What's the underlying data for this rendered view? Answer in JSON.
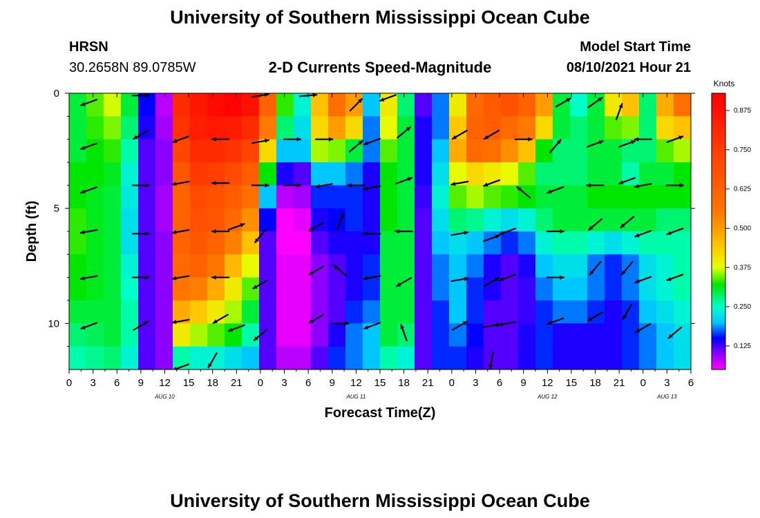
{
  "header": {
    "title": "University of Southern Mississippi Ocean Cube",
    "station": "HRSN",
    "coords": "30.2658N  89.0785W",
    "plot_title": "2-D Currents Speed-Magnitude",
    "model_label": "Model Start Time",
    "model_time": "08/10/2021 Hour 21"
  },
  "footer": {
    "title": "University of Southern Mississippi Ocean Cube"
  },
  "chart_data": {
    "type": "heatmap",
    "title": "2-D Currents Speed-Magnitude",
    "xlabel": "Forecast Time(Z)",
    "ylabel": "Depth (ft)",
    "xlim": [
      0,
      78
    ],
    "ylim": [
      0,
      12
    ],
    "y_inverted": true,
    "x_ticks": [
      {
        "t": 0,
        "label": "0"
      },
      {
        "t": 3,
        "label": "3"
      },
      {
        "t": 6,
        "label": "6"
      },
      {
        "t": 9,
        "label": "9"
      },
      {
        "t": 12,
        "label": "12"
      },
      {
        "t": 15,
        "label": "15"
      },
      {
        "t": 18,
        "label": "18"
      },
      {
        "t": 21,
        "label": "21"
      },
      {
        "t": 24,
        "label": "0"
      },
      {
        "t": 27,
        "label": "3"
      },
      {
        "t": 30,
        "label": "6"
      },
      {
        "t": 33,
        "label": "9"
      },
      {
        "t": 36,
        "label": "12"
      },
      {
        "t": 39,
        "label": "15"
      },
      {
        "t": 42,
        "label": "18"
      },
      {
        "t": 45,
        "label": "21"
      },
      {
        "t": 48,
        "label": "0"
      },
      {
        "t": 51,
        "label": "3"
      },
      {
        "t": 54,
        "label": "6"
      },
      {
        "t": 57,
        "label": "9"
      },
      {
        "t": 60,
        "label": "12"
      },
      {
        "t": 63,
        "label": "15"
      },
      {
        "t": 66,
        "label": "18"
      },
      {
        "t": 69,
        "label": "21"
      },
      {
        "t": 72,
        "label": "0"
      },
      {
        "t": 75,
        "label": "3"
      },
      {
        "t": 78,
        "label": "6"
      }
    ],
    "date_labels": [
      {
        "t": 12,
        "label": "AUG 10"
      },
      {
        "t": 36,
        "label": "AUG 11"
      },
      {
        "t": 60,
        "label": "AUG 12"
      },
      {
        "t": 75,
        "label": "AUG 13"
      }
    ],
    "y_ticks": [
      0,
      5,
      10
    ],
    "colorbar": {
      "label": "Knots",
      "min": 0.05,
      "max": 0.93,
      "ticks": [
        "0.875",
        "0.750",
        "0.625",
        "0.500",
        "0.375",
        "0.250",
        "0.125"
      ],
      "tick_values": [
        0.875,
        0.75,
        0.625,
        0.5,
        0.375,
        0.25,
        0.125
      ]
    },
    "depths_ft": [
      0.5,
      1.5,
      2.5,
      3.5,
      4.5,
      5.5,
      6.5,
      7.5,
      8.5,
      9.5,
      10.5,
      11.5
    ],
    "speed_knots": [
      [
        0.3,
        0.34,
        0.37,
        0.3,
        0.15,
        0.08,
        0.8,
        0.86,
        0.9,
        0.92,
        0.88,
        0.62,
        0.33,
        0.24,
        0.45,
        0.58,
        0.5,
        0.2,
        0.4,
        0.28,
        0.12,
        0.18,
        0.4,
        0.6,
        0.65,
        0.68,
        0.62,
        0.5,
        0.3,
        0.25,
        0.3,
        0.4,
        0.45,
        0.28,
        0.48,
        0.58
      ],
      [
        0.3,
        0.33,
        0.35,
        0.28,
        0.14,
        0.09,
        0.78,
        0.84,
        0.86,
        0.85,
        0.8,
        0.55,
        0.28,
        0.22,
        0.42,
        0.5,
        0.42,
        0.18,
        0.38,
        0.3,
        0.14,
        0.18,
        0.44,
        0.62,
        0.64,
        0.6,
        0.55,
        0.42,
        0.3,
        0.28,
        0.3,
        0.34,
        0.35,
        0.28,
        0.42,
        0.45
      ],
      [
        0.3,
        0.32,
        0.33,
        0.26,
        0.12,
        0.1,
        0.72,
        0.8,
        0.8,
        0.78,
        0.72,
        0.42,
        0.2,
        0.2,
        0.36,
        0.35,
        0.3,
        0.18,
        0.34,
        0.3,
        0.14,
        0.2,
        0.48,
        0.6,
        0.58,
        0.52,
        0.45,
        0.32,
        0.28,
        0.28,
        0.3,
        0.3,
        0.28,
        0.28,
        0.34,
        0.36
      ],
      [
        0.32,
        0.32,
        0.31,
        0.24,
        0.12,
        0.1,
        0.66,
        0.76,
        0.74,
        0.7,
        0.64,
        0.32,
        0.14,
        0.12,
        0.2,
        0.2,
        0.18,
        0.14,
        0.32,
        0.3,
        0.14,
        0.22,
        0.38,
        0.42,
        0.4,
        0.38,
        0.34,
        0.28,
        0.28,
        0.28,
        0.3,
        0.3,
        0.26,
        0.3,
        0.3,
        0.32
      ],
      [
        0.32,
        0.31,
        0.3,
        0.23,
        0.12,
        0.09,
        0.62,
        0.7,
        0.68,
        0.64,
        0.58,
        0.2,
        0.08,
        0.09,
        0.16,
        0.16,
        0.16,
        0.14,
        0.32,
        0.3,
        0.13,
        0.24,
        0.34,
        0.36,
        0.34,
        0.33,
        0.32,
        0.3,
        0.3,
        0.3,
        0.32,
        0.32,
        0.32,
        0.32,
        0.32,
        0.32
      ],
      [
        0.33,
        0.31,
        0.3,
        0.22,
        0.12,
        0.09,
        0.62,
        0.68,
        0.66,
        0.6,
        0.52,
        0.15,
        0.05,
        0.06,
        0.14,
        0.15,
        0.16,
        0.14,
        0.32,
        0.3,
        0.12,
        0.22,
        0.28,
        0.27,
        0.24,
        0.22,
        0.24,
        0.28,
        0.3,
        0.3,
        0.3,
        0.3,
        0.3,
        0.3,
        0.28,
        0.28
      ],
      [
        0.33,
        0.31,
        0.3,
        0.22,
        0.12,
        0.1,
        0.62,
        0.66,
        0.62,
        0.54,
        0.45,
        0.12,
        0.05,
        0.05,
        0.12,
        0.14,
        0.14,
        0.14,
        0.3,
        0.3,
        0.12,
        0.2,
        0.22,
        0.2,
        0.18,
        0.16,
        0.18,
        0.24,
        0.26,
        0.26,
        0.24,
        0.22,
        0.24,
        0.26,
        0.26,
        0.26
      ],
      [
        0.32,
        0.31,
        0.3,
        0.24,
        0.12,
        0.1,
        0.6,
        0.62,
        0.56,
        0.46,
        0.38,
        0.12,
        0.06,
        0.06,
        0.1,
        0.12,
        0.14,
        0.16,
        0.3,
        0.3,
        0.12,
        0.18,
        0.2,
        0.18,
        0.14,
        0.12,
        0.14,
        0.2,
        0.22,
        0.22,
        0.18,
        0.16,
        0.18,
        0.22,
        0.24,
        0.26
      ],
      [
        0.32,
        0.31,
        0.3,
        0.25,
        0.12,
        0.1,
        0.56,
        0.54,
        0.48,
        0.4,
        0.34,
        0.12,
        0.06,
        0.06,
        0.1,
        0.12,
        0.14,
        0.16,
        0.3,
        0.3,
        0.12,
        0.18,
        0.2,
        0.16,
        0.14,
        0.12,
        0.13,
        0.18,
        0.2,
        0.2,
        0.18,
        0.16,
        0.18,
        0.22,
        0.24,
        0.26
      ],
      [
        0.3,
        0.3,
        0.3,
        0.26,
        0.12,
        0.1,
        0.48,
        0.44,
        0.4,
        0.36,
        0.3,
        0.12,
        0.06,
        0.06,
        0.1,
        0.12,
        0.16,
        0.18,
        0.3,
        0.3,
        0.12,
        0.16,
        0.2,
        0.16,
        0.12,
        0.12,
        0.13,
        0.16,
        0.18,
        0.18,
        0.16,
        0.14,
        0.16,
        0.2,
        0.22,
        0.24
      ],
      [
        0.28,
        0.29,
        0.3,
        0.26,
        0.12,
        0.1,
        0.4,
        0.36,
        0.34,
        0.32,
        0.26,
        0.12,
        0.06,
        0.06,
        0.1,
        0.14,
        0.18,
        0.2,
        0.3,
        0.28,
        0.12,
        0.16,
        0.18,
        0.15,
        0.12,
        0.12,
        0.14,
        0.16,
        0.14,
        0.14,
        0.14,
        0.14,
        0.16,
        0.18,
        0.2,
        0.22
      ],
      [
        0.26,
        0.27,
        0.28,
        0.24,
        0.12,
        0.1,
        0.26,
        0.24,
        0.24,
        0.22,
        0.2,
        0.12,
        0.08,
        0.08,
        0.12,
        0.16,
        0.18,
        0.2,
        0.26,
        0.24,
        0.12,
        0.16,
        0.16,
        0.14,
        0.12,
        0.12,
        0.14,
        0.16,
        0.14,
        0.14,
        0.14,
        0.14,
        0.16,
        0.18,
        0.2,
        0.22
      ]
    ],
    "vectors": [
      {
        "t": 2.5,
        "d": 0.4,
        "a": 200
      },
      {
        "t": 9,
        "d": 0.1,
        "a": 0
      },
      {
        "t": 24,
        "d": 0.1,
        "a": 10
      },
      {
        "t": 30,
        "d": 0.1,
        "a": 5
      },
      {
        "t": 36,
        "d": 0.5,
        "a": 45
      },
      {
        "t": 40,
        "d": 0.2,
        "a": 200
      },
      {
        "t": 62,
        "d": 0.4,
        "a": 30
      },
      {
        "t": 66,
        "d": 0.4,
        "a": 35
      },
      {
        "t": 69,
        "d": 0.8,
        "a": 70
      },
      {
        "t": 2.5,
        "d": 2.3,
        "a": 200
      },
      {
        "t": 9,
        "d": 1.8,
        "a": 210
      },
      {
        "t": 14,
        "d": 2.0,
        "a": 200
      },
      {
        "t": 19,
        "d": 2.0,
        "a": 180
      },
      {
        "t": 24,
        "d": 2.1,
        "a": 10
      },
      {
        "t": 28,
        "d": 2.0,
        "a": 0
      },
      {
        "t": 32,
        "d": 2.0,
        "a": 0
      },
      {
        "t": 36,
        "d": 2.3,
        "a": 40
      },
      {
        "t": 38,
        "d": 2.1,
        "a": 200
      },
      {
        "t": 42,
        "d": 1.7,
        "a": 40
      },
      {
        "t": 49,
        "d": 1.8,
        "a": 210
      },
      {
        "t": 53,
        "d": 1.8,
        "a": 210
      },
      {
        "t": 57,
        "d": 2.0,
        "a": 0
      },
      {
        "t": 61,
        "d": 2.3,
        "a": 50
      },
      {
        "t": 66,
        "d": 2.2,
        "a": 20
      },
      {
        "t": 70,
        "d": 2.2,
        "a": 20
      },
      {
        "t": 72,
        "d": 2.0,
        "a": 180
      },
      {
        "t": 76,
        "d": 2.0,
        "a": 20
      },
      {
        "t": 2.5,
        "d": 4.2,
        "a": 200
      },
      {
        "t": 9,
        "d": 4.0,
        "a": 0
      },
      {
        "t": 14,
        "d": 3.9,
        "a": 190
      },
      {
        "t": 19,
        "d": 3.9,
        "a": 180
      },
      {
        "t": 24,
        "d": 4.0,
        "a": 0
      },
      {
        "t": 28,
        "d": 4.0,
        "a": 0
      },
      {
        "t": 32,
        "d": 4.0,
        "a": 190
      },
      {
        "t": 36,
        "d": 4.0,
        "a": 180
      },
      {
        "t": 38,
        "d": 4.1,
        "a": 190
      },
      {
        "t": 42,
        "d": 3.8,
        "a": 20
      },
      {
        "t": 49,
        "d": 3.9,
        "a": 190
      },
      {
        "t": 53,
        "d": 3.9,
        "a": 200
      },
      {
        "t": 57,
        "d": 4.3,
        "a": 140
      },
      {
        "t": 61,
        "d": 4.2,
        "a": 200
      },
      {
        "t": 66,
        "d": 4.0,
        "a": 180
      },
      {
        "t": 70,
        "d": 3.8,
        "a": 200
      },
      {
        "t": 72,
        "d": 4.0,
        "a": 190
      },
      {
        "t": 76,
        "d": 4.0,
        "a": 0
      },
      {
        "t": 2.5,
        "d": 6.0,
        "a": 190
      },
      {
        "t": 9,
        "d": 6.1,
        "a": 0
      },
      {
        "t": 14,
        "d": 6.0,
        "a": 190
      },
      {
        "t": 19,
        "d": 6.0,
        "a": 180
      },
      {
        "t": 21,
        "d": 5.8,
        "a": 20
      },
      {
        "t": 24,
        "d": 6.2,
        "a": 230
      },
      {
        "t": 31,
        "d": 5.8,
        "a": 210
      },
      {
        "t": 34,
        "d": 5.6,
        "a": 70
      },
      {
        "t": 38,
        "d": 6.1,
        "a": 180
      },
      {
        "t": 42,
        "d": 6.0,
        "a": 180
      },
      {
        "t": 49,
        "d": 6.1,
        "a": 10
      },
      {
        "t": 53,
        "d": 6.3,
        "a": 20
      },
      {
        "t": 55,
        "d": 6.0,
        "a": 200
      },
      {
        "t": 61,
        "d": 6.0,
        "a": 0
      },
      {
        "t": 66,
        "d": 5.7,
        "a": 220
      },
      {
        "t": 70,
        "d": 5.6,
        "a": 220
      },
      {
        "t": 72,
        "d": 6.1,
        "a": 200
      },
      {
        "t": 76,
        "d": 6.0,
        "a": 200
      },
      {
        "t": 2.5,
        "d": 8.0,
        "a": 190
      },
      {
        "t": 9,
        "d": 8.0,
        "a": 0
      },
      {
        "t": 14,
        "d": 8.0,
        "a": 190
      },
      {
        "t": 19,
        "d": 8.0,
        "a": 180
      },
      {
        "t": 24,
        "d": 8.3,
        "a": 210
      },
      {
        "t": 31,
        "d": 7.7,
        "a": 210
      },
      {
        "t": 34,
        "d": 7.7,
        "a": 140
      },
      {
        "t": 38,
        "d": 8.0,
        "a": 190
      },
      {
        "t": 42,
        "d": 8.2,
        "a": 210
      },
      {
        "t": 49,
        "d": 8.1,
        "a": 10
      },
      {
        "t": 53,
        "d": 8.2,
        "a": 30
      },
      {
        "t": 55,
        "d": 8.0,
        "a": 200
      },
      {
        "t": 61,
        "d": 8.0,
        "a": 0
      },
      {
        "t": 66,
        "d": 7.6,
        "a": 230
      },
      {
        "t": 70,
        "d": 7.6,
        "a": 230
      },
      {
        "t": 72,
        "d": 8.1,
        "a": 200
      },
      {
        "t": 76,
        "d": 8.0,
        "a": 200
      },
      {
        "t": 2.5,
        "d": 10.1,
        "a": 200
      },
      {
        "t": 9,
        "d": 10.1,
        "a": 30
      },
      {
        "t": 14,
        "d": 9.9,
        "a": 190
      },
      {
        "t": 19,
        "d": 9.8,
        "a": 210
      },
      {
        "t": 21,
        "d": 10.2,
        "a": 200
      },
      {
        "t": 24,
        "d": 10.5,
        "a": 220
      },
      {
        "t": 31,
        "d": 9.8,
        "a": 210
      },
      {
        "t": 34,
        "d": 10.0,
        "a": 0
      },
      {
        "t": 38,
        "d": 10.1,
        "a": 200
      },
      {
        "t": 42,
        "d": 10.4,
        "a": 110
      },
      {
        "t": 49,
        "d": 10.1,
        "a": 30
      },
      {
        "t": 53,
        "d": 10.1,
        "a": 10
      },
      {
        "t": 55,
        "d": 10.0,
        "a": 190
      },
      {
        "t": 61,
        "d": 9.9,
        "a": 200
      },
      {
        "t": 66,
        "d": 9.7,
        "a": 210
      },
      {
        "t": 70,
        "d": 9.5,
        "a": 240
      },
      {
        "t": 72,
        "d": 10.2,
        "a": 210
      },
      {
        "t": 76,
        "d": 10.4,
        "a": 220
      },
      {
        "t": 14,
        "d": 11.9,
        "a": 200
      },
      {
        "t": 18,
        "d": 11.6,
        "a": 240
      },
      {
        "t": 53,
        "d": 11.6,
        "a": 260
      }
    ],
    "grid": false,
    "legend": "colorbar-right"
  }
}
